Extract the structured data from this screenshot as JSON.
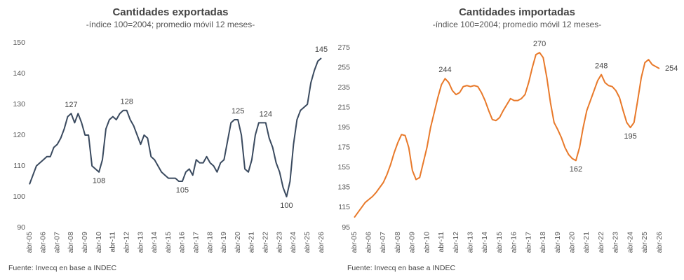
{
  "chart_data": [
    {
      "type": "line",
      "title": "Cantidades exportadas",
      "subtitle": "-índice 100=2004; promedio móvil 12 meses-",
      "source": "Fuente: Invecq en base a INDEC",
      "categories": [
        "abr-05",
        null,
        null,
        null,
        "abr-06",
        null,
        null,
        null,
        "abr-07",
        null,
        null,
        null,
        "abr-08",
        null,
        null,
        null,
        "abr-09",
        null,
        null,
        null,
        "abr-10",
        null,
        null,
        null,
        "abr-11",
        null,
        null,
        null,
        "abr-12",
        null,
        null,
        null,
        "abr-13",
        null,
        null,
        null,
        "abr-14",
        null,
        null,
        null,
        "abr-15",
        null,
        null,
        null,
        "abr-16",
        null,
        null,
        null,
        "abr-17",
        null,
        null,
        null,
        "abr-18",
        null,
        null,
        null,
        "abr-19",
        null,
        null,
        null,
        "abr-20",
        null,
        null,
        null,
        "abr-21",
        null,
        null,
        null,
        "abr-22",
        null,
        null,
        null,
        "abr-23",
        null,
        null,
        null,
        "abr-24",
        null,
        null,
        null,
        "abr-25",
        null,
        null,
        null,
        "abr-26"
      ],
      "series": [
        {
          "color": "#3a4a5f",
          "values": [
            104,
            107,
            110,
            111,
            112,
            113,
            113,
            116,
            117,
            119,
            122,
            126,
            127,
            124,
            127,
            124,
            120,
            120,
            110,
            109,
            108,
            112,
            122,
            125,
            126,
            125,
            127,
            128,
            128,
            125,
            123,
            120,
            117,
            120,
            119,
            113,
            112,
            110,
            108,
            107,
            106,
            106,
            106,
            105,
            105,
            108,
            109,
            107,
            112,
            111,
            111,
            113,
            111,
            110,
            108,
            111,
            112,
            118,
            124,
            125,
            125,
            120,
            109,
            108,
            112,
            120,
            124,
            124,
            124,
            119,
            116,
            111,
            108,
            103,
            100,
            105,
            117,
            125,
            128,
            129,
            130,
            137,
            141,
            144,
            145
          ],
          "value_labels": [
            null,
            null,
            null,
            null,
            null,
            null,
            null,
            null,
            null,
            null,
            null,
            null,
            "127",
            null,
            null,
            null,
            null,
            null,
            null,
            null,
            "108",
            null,
            null,
            null,
            null,
            null,
            null,
            null,
            "128",
            null,
            null,
            null,
            null,
            null,
            null,
            null,
            null,
            null,
            null,
            null,
            null,
            null,
            null,
            null,
            "105",
            null,
            null,
            null,
            null,
            null,
            null,
            null,
            null,
            null,
            null,
            null,
            null,
            null,
            null,
            null,
            "125",
            null,
            null,
            null,
            null,
            null,
            null,
            null,
            "124",
            null,
            null,
            null,
            null,
            null,
            "100",
            null,
            null,
            null,
            null,
            null,
            null,
            null,
            null,
            null,
            "145"
          ]
        }
      ],
      "ylim": [
        90,
        150
      ],
      "yticks": [
        90,
        100,
        110,
        120,
        130,
        140,
        150
      ]
    },
    {
      "type": "line",
      "title": "Cantidades importadas",
      "subtitle": "-índice 100=2004; promedio móvil 12 meses-",
      "source": "Fuente: Invecq en base a INDEC",
      "categories": [
        "abr-05",
        null,
        null,
        null,
        "abr-06",
        null,
        null,
        null,
        "abr-07",
        null,
        null,
        null,
        "abr-08",
        null,
        null,
        null,
        "abr-09",
        null,
        null,
        null,
        "abr-10",
        null,
        null,
        null,
        "abr-11",
        null,
        null,
        null,
        "abr-12",
        null,
        null,
        null,
        "abr-13",
        null,
        null,
        null,
        "abr-14",
        null,
        null,
        null,
        "abr-15",
        null,
        null,
        null,
        "abr-16",
        null,
        null,
        null,
        "abr-17",
        null,
        null,
        null,
        "abr-18",
        null,
        null,
        null,
        "abr-19",
        null,
        null,
        null,
        "abr-20",
        null,
        null,
        null,
        "abr-21",
        null,
        null,
        null,
        "abr-22",
        null,
        null,
        null,
        "abr-23",
        null,
        null,
        null,
        "abr-24",
        null,
        null,
        null,
        "abr-25",
        null,
        null,
        null,
        "abr-26"
      ],
      "series": [
        {
          "color": "#e8792a",
          "values": [
            105,
            110,
            115,
            120,
            123,
            126,
            130,
            135,
            140,
            148,
            158,
            170,
            180,
            188,
            187,
            175,
            152,
            143,
            145,
            160,
            175,
            195,
            210,
            225,
            238,
            244,
            240,
            232,
            228,
            230,
            236,
            237,
            236,
            237,
            236,
            230,
            222,
            212,
            203,
            202,
            205,
            212,
            218,
            224,
            222,
            222,
            224,
            228,
            240,
            255,
            268,
            270,
            265,
            245,
            220,
            200,
            193,
            185,
            175,
            168,
            164,
            162,
            175,
            195,
            212,
            222,
            232,
            242,
            248,
            240,
            237,
            236,
            232,
            225,
            212,
            200,
            195,
            200,
            222,
            245,
            260,
            263,
            258,
            256,
            254
          ],
          "value_labels": [
            null,
            null,
            null,
            null,
            null,
            null,
            null,
            null,
            null,
            null,
            null,
            null,
            null,
            null,
            null,
            null,
            null,
            null,
            null,
            null,
            null,
            null,
            null,
            null,
            null,
            "244",
            null,
            null,
            null,
            null,
            null,
            null,
            null,
            null,
            null,
            null,
            null,
            null,
            null,
            null,
            null,
            null,
            null,
            null,
            null,
            null,
            null,
            null,
            null,
            null,
            null,
            "270",
            null,
            null,
            null,
            null,
            null,
            null,
            null,
            null,
            null,
            "162",
            null,
            null,
            null,
            null,
            null,
            null,
            "248",
            null,
            null,
            null,
            null,
            null,
            null,
            null,
            "195",
            null,
            null,
            null,
            null,
            null,
            null,
            null,
            "254"
          ]
        }
      ],
      "ylim": [
        95,
        275
      ],
      "yticks": [
        95,
        115,
        135,
        155,
        175,
        195,
        215,
        235,
        255,
        275
      ]
    }
  ]
}
